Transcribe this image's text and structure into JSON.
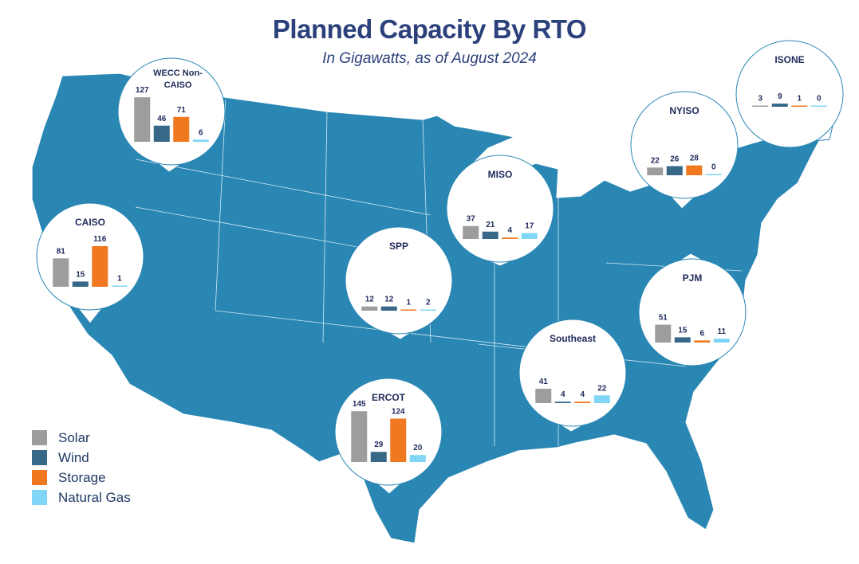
{
  "title": "Planned Capacity By RTO",
  "subtitle": "In Gigawatts, as of August 2024",
  "colors": {
    "map": "#2a87b4",
    "Solar": "#9d9d9d",
    "Wind": "#376887",
    "Storage": "#ef7821",
    "Natural Gas": "#7fd6f6",
    "title": "#2c417c"
  },
  "chart_data": {
    "type": "bar",
    "title": "Planned Capacity By RTO",
    "subtitle": "In Gigawatts, as of August 2024",
    "categories": [
      "Solar",
      "Wind",
      "Storage",
      "Natural Gas"
    ],
    "legend": "bottom-left",
    "regions": [
      {
        "name": "WECC Non-CAISO",
        "values": [
          127,
          46,
          71,
          6
        ]
      },
      {
        "name": "CAISO",
        "values": [
          81,
          15,
          116,
          1
        ]
      },
      {
        "name": "SPP",
        "values": [
          12,
          12,
          1,
          2
        ]
      },
      {
        "name": "MISO",
        "values": [
          37,
          21,
          4,
          17
        ]
      },
      {
        "name": "ERCOT",
        "values": [
          145,
          29,
          124,
          20
        ]
      },
      {
        "name": "Southeast",
        "values": [
          41,
          4,
          4,
          22
        ]
      },
      {
        "name": "PJM",
        "values": [
          51,
          15,
          6,
          11
        ]
      },
      {
        "name": "NYISO",
        "values": [
          22,
          26,
          28,
          0
        ]
      },
      {
        "name": "ISONE",
        "values": [
          3,
          9,
          1,
          0
        ]
      }
    ]
  }
}
